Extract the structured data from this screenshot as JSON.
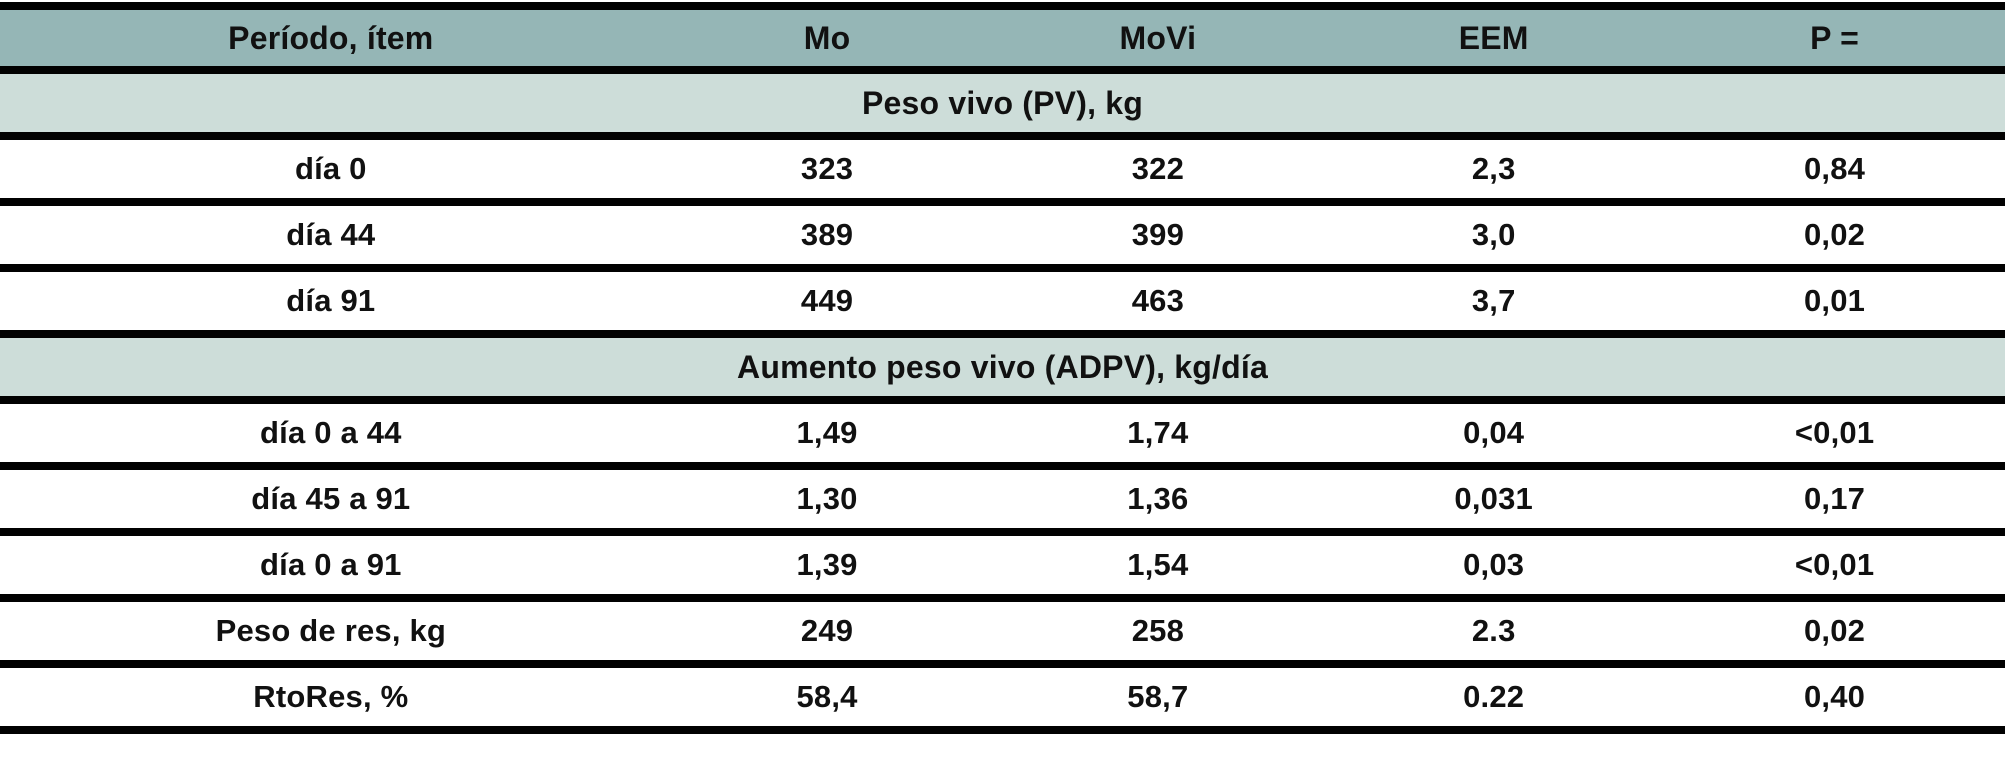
{
  "table": {
    "columns": [
      {
        "key": "item",
        "label": "Período, ítem"
      },
      {
        "key": "mo",
        "label": "Mo"
      },
      {
        "key": "movi",
        "label": "MoVi"
      },
      {
        "key": "eem",
        "label": "EEM"
      },
      {
        "key": "p",
        "label": "P ="
      }
    ],
    "sections": [
      {
        "title": "Peso vivo (PV), kg",
        "rows": [
          {
            "item": "día 0",
            "mo": "323",
            "movi": "322",
            "eem": "2,3",
            "p": "0,84"
          },
          {
            "item": "día 44",
            "mo": "389",
            "movi": "399",
            "eem": "3,0",
            "p": "0,02"
          },
          {
            "item": "día 91",
            "mo": "449",
            "movi": "463",
            "eem": "3,7",
            "p": "0,01"
          }
        ]
      },
      {
        "title": "Aumento peso vivo (ADPV), kg/día",
        "rows": [
          {
            "item": "día 0 a 44",
            "mo": "1,49",
            "movi": "1,74",
            "eem": "0,04",
            "p": "<0,01"
          },
          {
            "item": "día 45 a 91",
            "mo": "1,30",
            "movi": "1,36",
            "eem": "0,031",
            "p": "0,17"
          },
          {
            "item": "día 0 a 91",
            "mo": "1,39",
            "movi": "1,54",
            "eem": "0,03",
            "p": "<0,01"
          },
          {
            "item": "Peso de res, kg",
            "mo": "249",
            "movi": "258",
            "eem": "2.3",
            "p": "0,02"
          },
          {
            "item": "RtoRes, %",
            "mo": "58,4",
            "movi": "58,7",
            "eem": "0.22",
            "p": "0,40"
          }
        ]
      }
    ]
  },
  "colors": {
    "header_bg": "#95b6b6",
    "section_bg": "#cdddd9",
    "data_row_bg": "#ffffff",
    "border": "#010101",
    "text": "#111111"
  },
  "chart_data": {
    "type": "table",
    "title": "",
    "columns": [
      "Período, ítem",
      "Mo",
      "MoVi",
      "EEM",
      "P ="
    ],
    "rows": [
      [
        "Peso vivo (PV), kg",
        "",
        "",
        "",
        ""
      ],
      [
        "día 0",
        "323",
        "322",
        "2,3",
        "0,84"
      ],
      [
        "día 44",
        "389",
        "399",
        "3,0",
        "0,02"
      ],
      [
        "día 91",
        "449",
        "463",
        "3,7",
        "0,01"
      ],
      [
        "Aumento peso vivo (ADPV), kg/día",
        "",
        "",
        "",
        ""
      ],
      [
        "día 0 a 44",
        "1,49",
        "1,74",
        "0,04",
        "<0,01"
      ],
      [
        "día 45 a 91",
        "1,30",
        "1,36",
        "0,031",
        "0,17"
      ],
      [
        "día 0 a 91",
        "1,39",
        "1,54",
        "0,03",
        "<0,01"
      ],
      [
        "Peso de res, kg",
        "249",
        "258",
        "2.3",
        "0,02"
      ],
      [
        "RtoRes, %",
        "58,4",
        "58,7",
        "0.22",
        "0,40"
      ]
    ]
  }
}
